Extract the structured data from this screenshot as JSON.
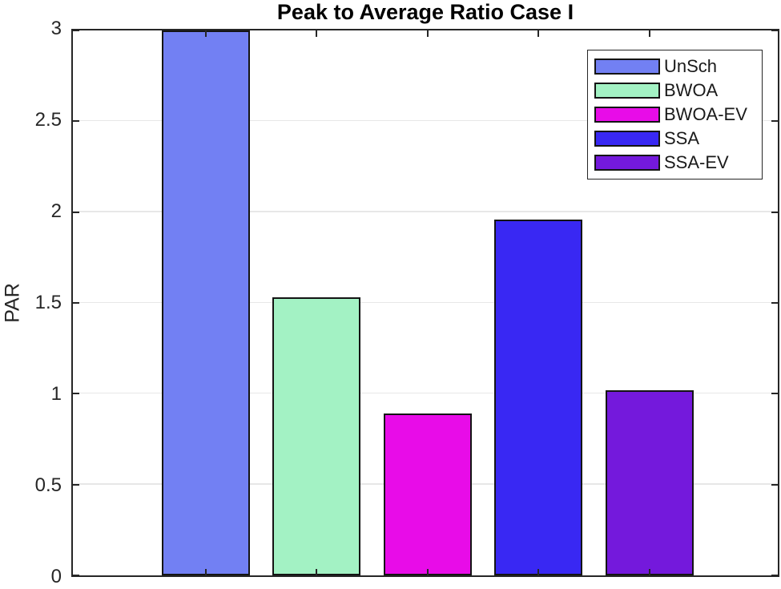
{
  "chart_data": {
    "type": "bar",
    "title": "Peak to Average Ratio Case I",
    "ylabel": "PAR",
    "xlabel": "",
    "series": [
      {
        "name": "UnSch",
        "value": 3.0,
        "color": "#7280f3"
      },
      {
        "name": "BWOA",
        "value": 1.53,
        "color": "#a3f2c4"
      },
      {
        "name": "BWOA-EV",
        "value": 0.89,
        "color": "#e80ce8"
      },
      {
        "name": "SSA",
        "value": 1.96,
        "color": "#3928f3"
      },
      {
        "name": "SSA-EV",
        "value": 1.02,
        "color": "#7419dc"
      }
    ],
    "ylim": [
      0,
      3
    ],
    "ytick_values": [
      0,
      0.5,
      1,
      1.5,
      2,
      2.5,
      3
    ],
    "yticks": [
      "0",
      "0.5",
      "1",
      "1.5",
      "2",
      "2.5",
      "3"
    ],
    "grid": "horizontal",
    "legend_position": "top-right",
    "legend_entries": [
      "UnSch",
      "BWOA",
      "BWOA-EV",
      "SSA",
      "SSA-EV"
    ]
  },
  "colors": {
    "axis": "#262626",
    "grid": "#e7e7e7",
    "bar_edge": "#141414",
    "background": "#ffffff",
    "title_text": "#000000"
  }
}
